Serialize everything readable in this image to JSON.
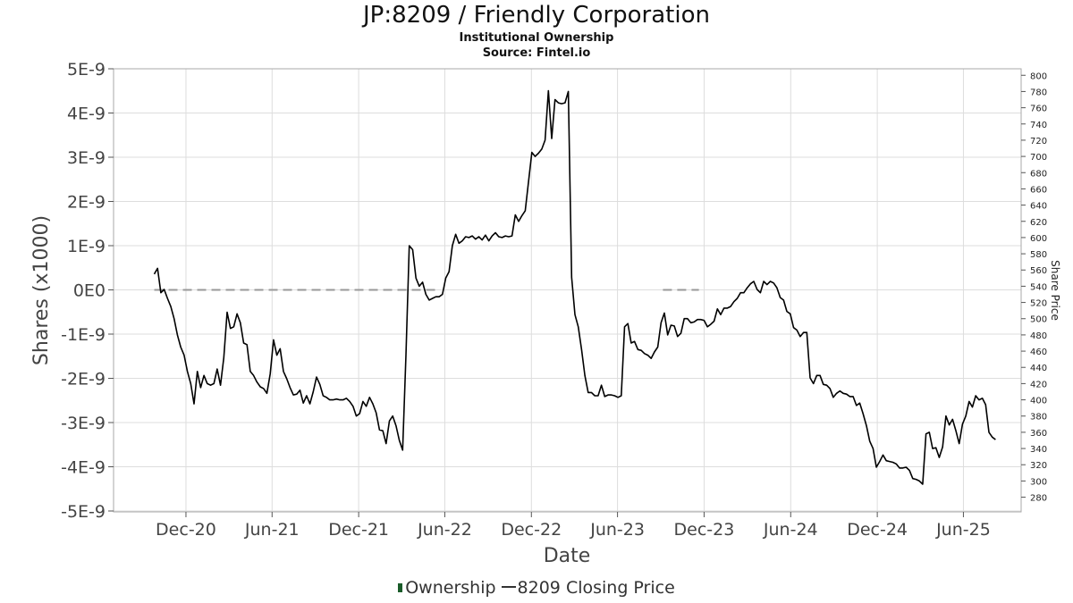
{
  "title": "JP:8209 / Friendly Corporation",
  "subtitle": "Institutional Ownership",
  "source": "Source: Fintel.io",
  "legend": {
    "ownership": "Ownership",
    "price": "8209 Closing Price"
  },
  "colors": {
    "price_line": "#000000",
    "ownership_line": "#999999",
    "grid": "#dddddd",
    "ownership_swatch": "#1a5c2a"
  },
  "chart_data": {
    "type": "line",
    "xlabel": "Date",
    "ylabel_left": "Shares (x1000)",
    "ylabel_right": "Share Price",
    "x_ticks": [
      "Dec-20",
      "Jun-21",
      "Dec-21",
      "Jun-22",
      "Dec-22",
      "Jun-23",
      "Dec-23",
      "Jun-24",
      "Dec-24",
      "Jun-25"
    ],
    "x_tick_dates": [
      "2020-12-01",
      "2021-06-01",
      "2021-12-01",
      "2022-06-01",
      "2022-12-01",
      "2023-06-01",
      "2023-12-01",
      "2024-06-01",
      "2024-12-01",
      "2025-06-01"
    ],
    "y_left_ticks": [
      "5E-9",
      "4E-9",
      "3E-9",
      "2E-9",
      "1E-9",
      "0E0",
      "-1E-9",
      "-2E-9",
      "-3E-9",
      "-4E-9",
      "-5E-9"
    ],
    "y_left_range": [
      -5e-09,
      5e-09
    ],
    "y_right_range": [
      263,
      808
    ],
    "y_right_ticks": [
      280,
      300,
      320,
      340,
      360,
      380,
      400,
      420,
      440,
      460,
      480,
      500,
      520,
      540,
      560,
      580,
      600,
      620,
      640,
      660,
      680,
      700,
      720,
      740,
      760,
      780,
      800
    ],
    "grid": true,
    "legend_position": "bottom",
    "series": [
      {
        "name": "Ownership",
        "style": "dashed",
        "segments": [
          [
            [
              "2020-09-25",
              0
            ],
            [
              "2022-05-20",
              0
            ]
          ],
          [
            [
              "2023-09-05",
              0
            ],
            [
              "2023-11-20",
              0
            ]
          ]
        ]
      },
      {
        "name": "8209 Closing Price",
        "style": "solid",
        "points": [
          [
            "2020-09-25",
            555
          ],
          [
            "2020-10-02",
            562
          ],
          [
            "2020-10-09",
            532
          ],
          [
            "2020-10-16",
            536
          ],
          [
            "2020-10-23",
            525
          ],
          [
            "2020-10-30",
            515
          ],
          [
            "2020-11-06",
            500
          ],
          [
            "2020-11-13",
            480
          ],
          [
            "2020-11-20",
            465
          ],
          [
            "2020-11-27",
            455
          ],
          [
            "2020-12-04",
            435
          ],
          [
            "2020-12-11",
            420
          ],
          [
            "2020-12-18",
            395
          ],
          [
            "2020-12-25",
            435
          ],
          [
            "2021-01-01",
            415
          ],
          [
            "2021-01-08",
            430
          ],
          [
            "2021-01-15",
            420
          ],
          [
            "2021-01-22",
            418
          ],
          [
            "2021-01-29",
            420
          ],
          [
            "2021-02-05",
            438
          ],
          [
            "2021-02-12",
            418
          ],
          [
            "2021-02-19",
            452
          ],
          [
            "2021-02-26",
            508
          ],
          [
            "2021-03-05",
            488
          ],
          [
            "2021-03-12",
            490
          ],
          [
            "2021-03-19",
            506
          ],
          [
            "2021-03-26",
            495
          ],
          [
            "2021-04-02",
            470
          ],
          [
            "2021-04-09",
            468
          ],
          [
            "2021-04-16",
            435
          ],
          [
            "2021-04-23",
            430
          ],
          [
            "2021-04-30",
            422
          ],
          [
            "2021-05-07",
            416
          ],
          [
            "2021-05-14",
            414
          ],
          [
            "2021-05-21",
            408
          ],
          [
            "2021-05-28",
            432
          ],
          [
            "2021-06-04",
            474
          ],
          [
            "2021-06-11",
            455
          ],
          [
            "2021-06-18",
            463
          ],
          [
            "2021-06-25",
            435
          ],
          [
            "2021-07-02",
            426
          ],
          [
            "2021-07-09",
            415
          ],
          [
            "2021-07-16",
            406
          ],
          [
            "2021-07-23",
            407
          ],
          [
            "2021-07-30",
            412
          ],
          [
            "2021-08-06",
            396
          ],
          [
            "2021-08-13",
            405
          ],
          [
            "2021-08-20",
            395
          ],
          [
            "2021-08-27",
            410
          ],
          [
            "2021-09-03",
            428
          ],
          [
            "2021-09-10",
            419
          ],
          [
            "2021-09-17",
            405
          ],
          [
            "2021-09-24",
            403
          ],
          [
            "2021-10-01",
            400
          ],
          [
            "2021-10-08",
            400
          ],
          [
            "2021-10-15",
            401
          ],
          [
            "2021-10-22",
            400
          ],
          [
            "2021-10-29",
            400
          ],
          [
            "2021-11-05",
            402
          ],
          [
            "2021-11-12",
            398
          ],
          [
            "2021-11-19",
            392
          ],
          [
            "2021-11-26",
            380
          ],
          [
            "2021-12-03",
            383
          ],
          [
            "2021-12-10",
            398
          ],
          [
            "2021-12-17",
            392
          ],
          [
            "2021-12-24",
            403
          ],
          [
            "2021-12-31",
            395
          ],
          [
            "2022-01-07",
            384
          ],
          [
            "2022-01-14",
            363
          ],
          [
            "2022-01-21",
            362
          ],
          [
            "2022-01-28",
            346
          ],
          [
            "2022-02-04",
            374
          ],
          [
            "2022-02-11",
            380
          ],
          [
            "2022-02-18",
            368
          ],
          [
            "2022-02-25",
            350
          ],
          [
            "2022-03-04",
            338
          ],
          [
            "2022-03-11",
            455
          ],
          [
            "2022-03-18",
            590
          ],
          [
            "2022-03-25",
            585
          ],
          [
            "2022-04-01",
            550
          ],
          [
            "2022-04-08",
            540
          ],
          [
            "2022-04-15",
            545
          ],
          [
            "2022-04-22",
            530
          ],
          [
            "2022-04-29",
            523
          ],
          [
            "2022-05-06",
            525
          ],
          [
            "2022-05-13",
            527
          ],
          [
            "2022-05-20",
            527
          ],
          [
            "2022-05-27",
            530
          ],
          [
            "2022-06-03",
            550
          ],
          [
            "2022-06-10",
            558
          ],
          [
            "2022-06-17",
            590
          ],
          [
            "2022-06-24",
            604
          ],
          [
            "2022-07-01",
            593
          ],
          [
            "2022-07-08",
            596
          ],
          [
            "2022-07-15",
            601
          ],
          [
            "2022-07-22",
            600
          ],
          [
            "2022-07-29",
            602
          ],
          [
            "2022-08-05",
            598
          ],
          [
            "2022-08-12",
            601
          ],
          [
            "2022-08-19",
            597
          ],
          [
            "2022-08-26",
            603
          ],
          [
            "2022-09-02",
            596
          ],
          [
            "2022-09-09",
            602
          ],
          [
            "2022-09-16",
            606
          ],
          [
            "2022-09-23",
            601
          ],
          [
            "2022-09-30",
            600
          ],
          [
            "2022-10-07",
            602
          ],
          [
            "2022-10-14",
            601
          ],
          [
            "2022-10-21",
            602
          ],
          [
            "2022-10-28",
            628
          ],
          [
            "2022-11-04",
            620
          ],
          [
            "2022-11-11",
            627
          ],
          [
            "2022-11-18",
            633
          ],
          [
            "2022-12-02",
            705
          ],
          [
            "2022-12-09",
            700
          ],
          [
            "2022-12-16",
            704
          ],
          [
            "2022-12-23",
            709
          ],
          [
            "2022-12-30",
            720
          ],
          [
            "2023-01-06",
            781
          ],
          [
            "2023-01-13",
            722
          ],
          [
            "2023-01-20",
            770
          ],
          [
            "2023-01-27",
            766
          ],
          [
            "2023-02-03",
            765
          ],
          [
            "2023-02-10",
            766
          ],
          [
            "2023-02-17",
            780
          ],
          [
            "2023-02-24",
            551
          ],
          [
            "2023-03-03",
            505
          ],
          [
            "2023-03-10",
            490
          ],
          [
            "2023-03-17",
            462
          ],
          [
            "2023-03-24",
            430
          ],
          [
            "2023-03-31",
            409
          ],
          [
            "2023-04-07",
            409
          ],
          [
            "2023-04-14",
            405
          ],
          [
            "2023-04-21",
            405
          ],
          [
            "2023-04-28",
            418
          ],
          [
            "2023-05-05",
            404
          ],
          [
            "2023-05-12",
            406
          ],
          [
            "2023-05-19",
            406
          ],
          [
            "2023-05-26",
            405
          ],
          [
            "2023-06-02",
            403
          ],
          [
            "2023-06-09",
            405
          ],
          [
            "2023-06-16",
            490
          ],
          [
            "2023-06-23",
            494
          ],
          [
            "2023-06-30",
            470
          ],
          [
            "2023-07-07",
            472
          ],
          [
            "2023-07-14",
            462
          ],
          [
            "2023-07-21",
            461
          ],
          [
            "2023-07-28",
            457
          ],
          [
            "2023-08-04",
            455
          ],
          [
            "2023-08-11",
            451
          ],
          [
            "2023-08-18",
            459
          ],
          [
            "2023-08-25",
            465
          ],
          [
            "2023-09-01",
            495
          ],
          [
            "2023-09-08",
            507
          ],
          [
            "2023-09-15",
            480
          ],
          [
            "2023-09-22",
            492
          ],
          [
            "2023-09-29",
            491
          ],
          [
            "2023-10-06",
            478
          ],
          [
            "2023-10-13",
            482
          ],
          [
            "2023-10-20",
            500
          ],
          [
            "2023-10-27",
            500
          ],
          [
            "2023-11-03",
            495
          ],
          [
            "2023-11-10",
            496
          ],
          [
            "2023-11-17",
            499
          ],
          [
            "2023-11-24",
            499
          ],
          [
            "2023-12-01",
            498
          ],
          [
            "2023-12-08",
            490
          ],
          [
            "2023-12-15",
            493
          ],
          [
            "2023-12-22",
            497
          ],
          [
            "2023-12-29",
            512
          ],
          [
            "2024-01-05",
            505
          ],
          [
            "2024-01-12",
            513
          ],
          [
            "2024-01-19",
            513
          ],
          [
            "2024-01-26",
            515
          ],
          [
            "2024-02-02",
            521
          ],
          [
            "2024-02-09",
            525
          ],
          [
            "2024-02-16",
            532
          ],
          [
            "2024-02-23",
            532
          ],
          [
            "2024-03-01",
            538
          ],
          [
            "2024-03-08",
            543
          ],
          [
            "2024-03-15",
            546
          ],
          [
            "2024-03-22",
            536
          ],
          [
            "2024-03-29",
            532
          ],
          [
            "2024-04-05",
            546
          ],
          [
            "2024-04-12",
            542
          ],
          [
            "2024-04-19",
            546
          ],
          [
            "2024-04-26",
            544
          ],
          [
            "2024-05-03",
            538
          ],
          [
            "2024-05-10",
            526
          ],
          [
            "2024-05-17",
            523
          ],
          [
            "2024-05-24",
            509
          ],
          [
            "2024-05-31",
            506
          ],
          [
            "2024-06-07",
            489
          ],
          [
            "2024-06-14",
            486
          ],
          [
            "2024-06-21",
            478
          ],
          [
            "2024-06-28",
            483
          ],
          [
            "2024-07-05",
            483
          ],
          [
            "2024-07-12",
            427
          ],
          [
            "2024-07-19",
            420
          ],
          [
            "2024-07-26",
            430
          ],
          [
            "2024-08-02",
            430
          ],
          [
            "2024-08-09",
            419
          ],
          [
            "2024-08-16",
            418
          ],
          [
            "2024-08-23",
            414
          ],
          [
            "2024-08-30",
            403
          ],
          [
            "2024-09-06",
            408
          ],
          [
            "2024-09-13",
            411
          ],
          [
            "2024-09-20",
            408
          ],
          [
            "2024-09-27",
            407
          ],
          [
            "2024-10-04",
            404
          ],
          [
            "2024-10-11",
            404
          ],
          [
            "2024-10-18",
            393
          ],
          [
            "2024-10-25",
            396
          ],
          [
            "2024-11-01",
            383
          ],
          [
            "2024-11-08",
            368
          ],
          [
            "2024-11-15",
            349
          ],
          [
            "2024-11-22",
            340
          ],
          [
            "2024-11-29",
            317
          ],
          [
            "2024-12-06",
            324
          ],
          [
            "2024-12-13",
            332
          ],
          [
            "2024-12-20",
            325
          ],
          [
            "2024-12-27",
            324
          ],
          [
            "2025-01-03",
            323
          ],
          [
            "2025-01-10",
            321
          ],
          [
            "2025-01-17",
            316
          ],
          [
            "2025-01-24",
            316
          ],
          [
            "2025-01-31",
            317
          ],
          [
            "2025-02-07",
            313
          ],
          [
            "2025-02-14",
            303
          ],
          [
            "2025-02-21",
            302
          ],
          [
            "2025-02-28",
            300
          ],
          [
            "2025-03-07",
            296
          ],
          [
            "2025-03-14",
            358
          ],
          [
            "2025-03-21",
            360
          ],
          [
            "2025-03-28",
            340
          ],
          [
            "2025-04-04",
            341
          ],
          [
            "2025-04-11",
            329
          ],
          [
            "2025-04-18",
            342
          ],
          [
            "2025-04-25",
            380
          ],
          [
            "2025-05-02",
            369
          ],
          [
            "2025-05-09",
            376
          ],
          [
            "2025-05-16",
            362
          ],
          [
            "2025-05-23",
            346
          ],
          [
            "2025-05-30",
            370
          ],
          [
            "2025-06-06",
            380
          ],
          [
            "2025-06-13",
            398
          ],
          [
            "2025-06-20",
            391
          ],
          [
            "2025-06-27",
            405
          ],
          [
            "2025-07-04",
            400
          ],
          [
            "2025-07-11",
            402
          ],
          [
            "2025-07-18",
            394
          ],
          [
            "2025-07-25",
            360
          ],
          [
            "2025-08-01",
            354
          ],
          [
            "2025-08-08",
            351
          ]
        ]
      }
    ]
  }
}
